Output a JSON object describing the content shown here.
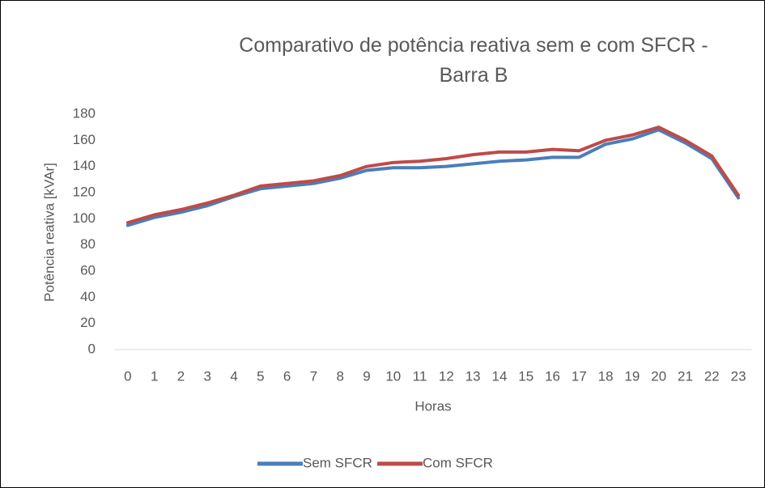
{
  "chart_data": {
    "type": "line",
    "title": "Comparativo de potência reativa sem e com SFCR - Barra B",
    "x_label": "Horas",
    "y_label": "Potência reativa [kVAr]",
    "categories": [
      "0",
      "1",
      "2",
      "3",
      "4",
      "5",
      "6",
      "7",
      "8",
      "9",
      "10",
      "11",
      "12",
      "13",
      "14",
      "15",
      "16",
      "17",
      "18",
      "19",
      "20",
      "21",
      "22",
      "23"
    ],
    "series": [
      {
        "name": "Sem SFCR",
        "color": "#4a7ebb",
        "values": [
          95,
          101,
          105,
          110,
          117,
          123,
          125,
          127,
          131,
          137,
          139,
          139,
          140,
          142,
          144,
          145,
          147,
          147,
          157,
          161,
          168,
          158,
          146,
          116
        ]
      },
      {
        "name": "Com SFCR",
        "color": "#be4b48",
        "values": [
          97,
          103,
          107,
          112,
          118,
          125,
          127,
          129,
          133,
          140,
          143,
          144,
          146,
          149,
          151,
          151,
          153,
          152,
          160,
          164,
          170,
          160,
          148,
          118
        ]
      }
    ],
    "ylim": [
      0,
      180
    ],
    "yticks": [
      0,
      20,
      40,
      60,
      80,
      100,
      120,
      140,
      160,
      180
    ],
    "grid": false,
    "legend": "bottom"
  }
}
